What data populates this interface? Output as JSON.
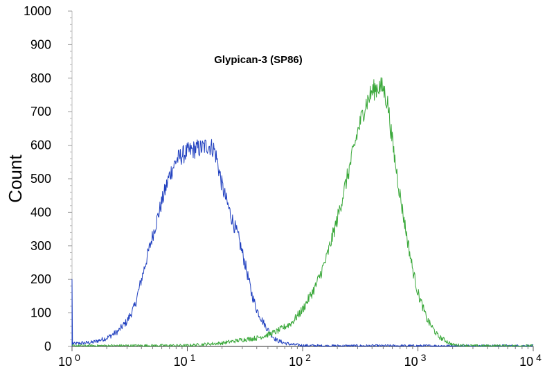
{
  "chart_data": {
    "type": "line",
    "title": "Glypican-3 (SP86)",
    "xlabel": "",
    "ylabel": "Count",
    "x_scale": "log",
    "xlim": [
      1,
      10000
    ],
    "ylim": [
      0,
      1000
    ],
    "grid": false,
    "y_ticks": [
      {
        "value": 0,
        "label": "0"
      },
      {
        "value": 100,
        "label": "100"
      },
      {
        "value": 200,
        "label": "200"
      },
      {
        "value": 300,
        "label": "300"
      },
      {
        "value": 400,
        "label": "400"
      },
      {
        "value": 500,
        "label": "500"
      },
      {
        "value": 600,
        "label": "600"
      },
      {
        "value": 700,
        "label": "700"
      },
      {
        "value": 800,
        "label": "800"
      },
      {
        "value": 900,
        "label": "900"
      },
      {
        "value": 1000,
        "label": "1000"
      }
    ],
    "x_ticks": [
      {
        "value": 1,
        "base": "10",
        "exp": "0"
      },
      {
        "value": 10,
        "base": "10",
        "exp": "1"
      },
      {
        "value": 100,
        "base": "10",
        "exp": "2"
      },
      {
        "value": 1000,
        "base": "10",
        "exp": "3"
      },
      {
        "value": 10000,
        "base": "10",
        "exp": "4"
      }
    ],
    "series": [
      {
        "color": "#1f3fbf",
        "x": [
          1,
          1.02,
          1.05,
          1.2,
          1.5,
          2,
          2.5,
          3,
          3.5,
          4,
          5,
          6,
          7,
          8,
          9,
          10,
          11,
          12,
          13,
          14,
          15,
          16,
          17,
          18,
          20,
          22,
          25,
          28,
          32,
          36,
          40,
          45,
          50,
          55,
          60,
          70,
          80,
          100,
          150,
          200,
          500,
          1000,
          10000
        ],
        "y": [
          200,
          10,
          8,
          10,
          12,
          25,
          45,
          75,
          120,
          200,
          330,
          430,
          510,
          555,
          570,
          580,
          585,
          590,
          590,
          595,
          600,
          595,
          590,
          560,
          480,
          430,
          370,
          320,
          240,
          160,
          110,
          75,
          50,
          30,
          18,
          10,
          6,
          3,
          2,
          2,
          2,
          2,
          2
        ]
      },
      {
        "color": "#3aa83a",
        "x": [
          1,
          10,
          20,
          30,
          40,
          50,
          60,
          80,
          100,
          130,
          160,
          200,
          250,
          300,
          350,
          400,
          450,
          500,
          550,
          600,
          700,
          800,
          900,
          1000,
          1200,
          1500,
          2000,
          3000,
          10000
        ],
        "y": [
          2,
          3,
          10,
          20,
          25,
          35,
          45,
          70,
          110,
          180,
          260,
          380,
          520,
          640,
          720,
          760,
          775,
          770,
          720,
          610,
          450,
          330,
          230,
          160,
          80,
          30,
          5,
          2,
          2
        ]
      }
    ]
  }
}
